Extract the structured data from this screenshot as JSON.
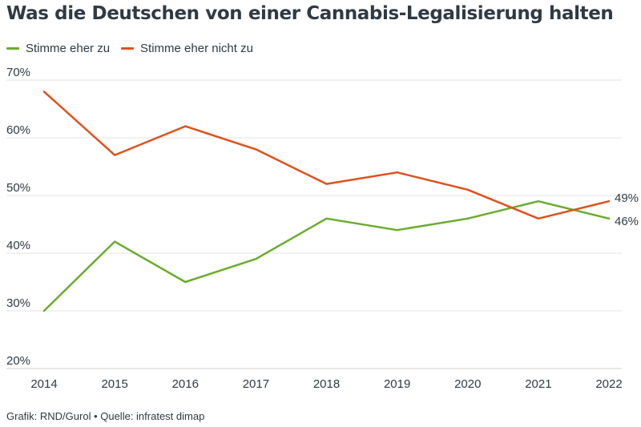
{
  "colors": {
    "green": "#6aac2f",
    "orange": "#e0501c",
    "grid": "#e3e3e3",
    "text": "#2f3a44"
  },
  "chart_data": {
    "type": "line",
    "title": "Was die Deutschen von einer Cannabis-Legalisierung halten",
    "x": [
      "2014",
      "2015",
      "2016",
      "2017",
      "2018",
      "2019",
      "2020",
      "2021",
      "2022"
    ],
    "series": [
      {
        "name": "Stimme eher zu",
        "color": "#6aac2f",
        "values": [
          30,
          42,
          35,
          39,
          46,
          44,
          46,
          49,
          46
        ],
        "end_label": "46%"
      },
      {
        "name": "Stimme eher nicht zu",
        "color": "#e0501c",
        "values": [
          68,
          57,
          62,
          58,
          52,
          54,
          51,
          46,
          49
        ],
        "end_label": "49%"
      }
    ],
    "ylim": [
      20,
      70
    ],
    "yticks": [
      20,
      30,
      40,
      50,
      60,
      70
    ],
    "ytick_labels": [
      "20%",
      "30%",
      "40%",
      "50%",
      "60%",
      "70%"
    ],
    "grid": true,
    "legend_position": "top-left",
    "xlabel": "",
    "ylabel": ""
  },
  "source": "Grafik: RND/Gurol • Quelle: infratest dimap"
}
